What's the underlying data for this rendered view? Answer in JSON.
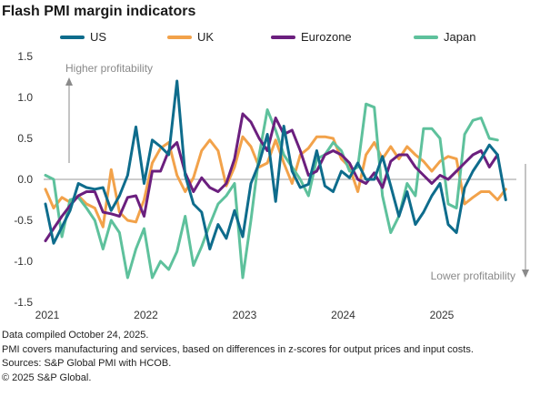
{
  "chart_data": {
    "type": "line",
    "title": "Flash PMI margin indicators",
    "ylim": [
      -1.5,
      1.5
    ],
    "y_ticks": [
      "1.5",
      "1.0",
      "0.5",
      "0.0",
      "-0.5",
      "-1.0",
      "-1.5"
    ],
    "x_tick_labels": [
      "2021",
      "2022",
      "2023",
      "2024",
      "2025"
    ],
    "x_start": "2021-01",
    "grid": false,
    "legend_position": "top",
    "annotations": {
      "higher": "Higher profitability",
      "lower": "Lower profitability"
    },
    "series": [
      {
        "name": "US",
        "color": "#0e6c8c",
        "values": [
          -0.3,
          -0.78,
          -0.58,
          -0.38,
          -0.05,
          -0.1,
          -0.12,
          -0.1,
          -0.38,
          -0.2,
          0.05,
          0.64,
          -0.05,
          0.48,
          0.4,
          0.3,
          1.2,
          0.05,
          -0.3,
          -0.4,
          -0.85,
          -0.55,
          -0.72,
          -0.38,
          -0.7,
          -0.05,
          0.2,
          0.55,
          -0.27,
          0.65,
          0.1,
          -0.1,
          -0.06,
          0.35,
          -0.08,
          -0.15,
          0.1,
          0.02,
          0.2,
          0.0,
          0.0,
          0.28,
          -0.08,
          -0.45,
          -0.15,
          -0.55,
          -0.4,
          -0.2,
          -0.05,
          -0.55,
          -0.65,
          -0.1,
          0.1,
          0.25,
          0.42,
          0.3,
          -0.25
        ]
      },
      {
        "name": "UK",
        "color": "#f2a24a",
        "values": [
          -0.12,
          -0.35,
          -0.22,
          -0.28,
          -0.2,
          -0.3,
          -0.35,
          -0.58,
          0.12,
          -0.4,
          -0.5,
          -0.52,
          -0.25,
          0.2,
          0.38,
          0.45,
          0.05,
          -0.15,
          0.02,
          0.35,
          0.48,
          0.35,
          -0.08,
          0.15,
          0.52,
          0.4,
          0.15,
          0.2,
          0.48,
          0.2,
          -0.05,
          0.3,
          0.38,
          0.52,
          0.52,
          0.5,
          0.25,
          0.15,
          -0.15,
          0.3,
          0.45,
          0.25,
          0.4,
          0.25,
          0.4,
          0.3,
          0.22,
          0.1,
          0.22,
          0.28,
          0.25,
          -0.3,
          -0.22,
          -0.15,
          -0.15,
          -0.25,
          -0.12
        ]
      },
      {
        "name": "Eurozone",
        "color": "#6b1f7e",
        "values": [
          -0.75,
          -0.6,
          -0.45,
          -0.32,
          -0.2,
          -0.15,
          -0.15,
          -0.4,
          -0.42,
          -0.45,
          -0.22,
          -0.2,
          -0.45,
          0.1,
          0.1,
          0.35,
          0.45,
          0.08,
          -0.15,
          0.02,
          -0.1,
          -0.15,
          -0.05,
          0.25,
          0.8,
          0.7,
          0.5,
          0.35,
          0.75,
          0.55,
          0.6,
          0.35,
          0.05,
          0.1,
          0.3,
          0.35,
          0.3,
          0.2,
          0.0,
          -0.05,
          0.08,
          -0.1,
          0.22,
          0.3,
          0.3,
          0.15,
          0.05,
          -0.05,
          0.05,
          0.0,
          0.1,
          0.2,
          0.3,
          0.35,
          0.15,
          0.3
        ]
      },
      {
        "name": "Japan",
        "color": "#5ec19c",
        "values": [
          0.05,
          0.0,
          -0.7,
          -0.25,
          -0.22,
          -0.35,
          -0.5,
          -0.85,
          -0.5,
          -0.65,
          -1.2,
          -0.85,
          -0.6,
          -1.2,
          -1.0,
          -1.1,
          -0.88,
          -0.45,
          -1.05,
          -0.82,
          -0.55,
          -0.3,
          -0.2,
          -0.05,
          -1.2,
          -0.5,
          0.3,
          0.85,
          0.6,
          0.3,
          0.15,
          0.0,
          -0.2,
          0.25,
          0.3,
          0.45,
          0.35,
          0.1,
          0.15,
          0.92,
          0.88,
          -0.2,
          -0.65,
          -0.45,
          -0.05,
          -0.2,
          0.62,
          0.62,
          0.5,
          -0.3,
          -0.35,
          0.55,
          0.72,
          0.75,
          0.5,
          0.48
        ]
      }
    ]
  },
  "footnotes": {
    "line1": "Data compiled October 24, 2025.",
    "line2": "PMI covers manufacturing and services, based on differences in z-scores for output prices and input costs.",
    "line3": "Sources: S&P Global PMI with HCOB.",
    "line4": "© 2025 S&P Global."
  }
}
